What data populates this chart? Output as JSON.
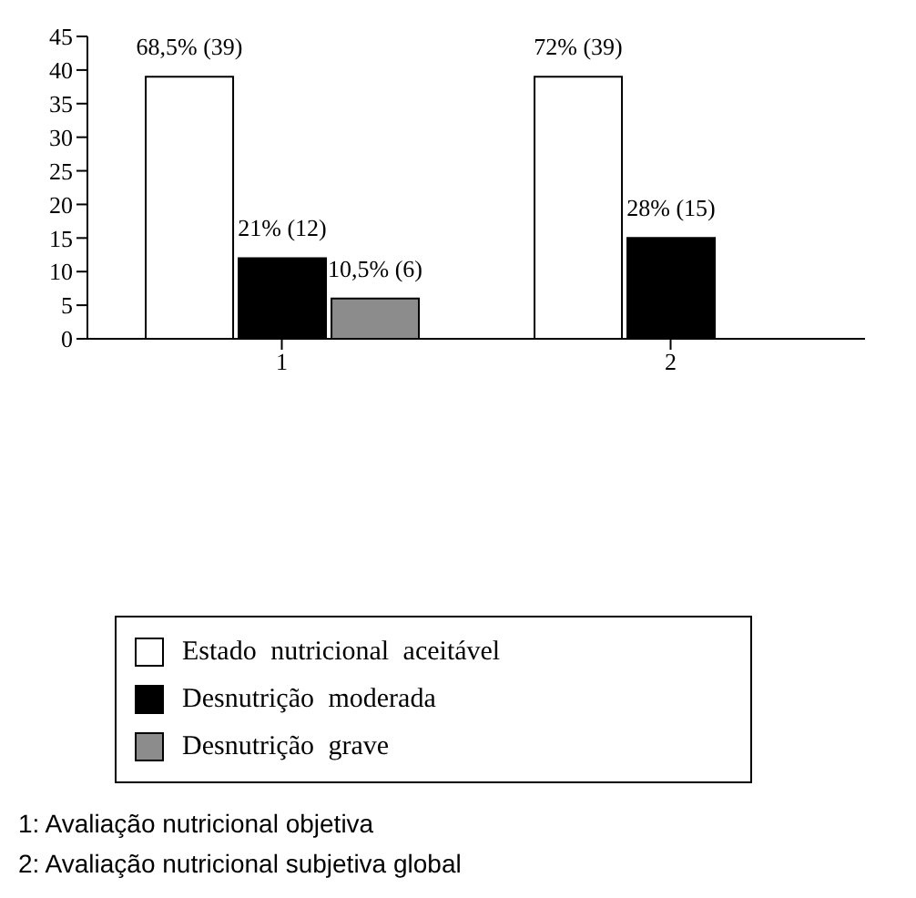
{
  "chart_data": {
    "type": "bar",
    "categories": [
      "1",
      "2"
    ],
    "series": [
      {
        "name": "Estado nutricional aceitável",
        "color": "#ffffff",
        "values": [
          39,
          39
        ],
        "value_labels": [
          "68,5% (39)",
          "72% (39)"
        ]
      },
      {
        "name": "Desnutrição moderada",
        "color": "#000000",
        "values": [
          12,
          15
        ],
        "value_labels": [
          "21% (12)",
          "28% (15)"
        ]
      },
      {
        "name": "Desnutrição grave",
        "color": "#8c8c8c",
        "values": [
          6,
          null
        ],
        "value_labels": [
          "10,5% (6)",
          null
        ]
      }
    ],
    "ylim": [
      0,
      45
    ],
    "yticks": [
      0,
      5,
      10,
      15,
      20,
      25,
      30,
      35,
      40,
      45
    ],
    "grid": false,
    "legend": "bottom",
    "annotations": [
      "1: Avaliação nutricional objetiva",
      "2: Avaliação nutricional subjetiva global"
    ]
  }
}
